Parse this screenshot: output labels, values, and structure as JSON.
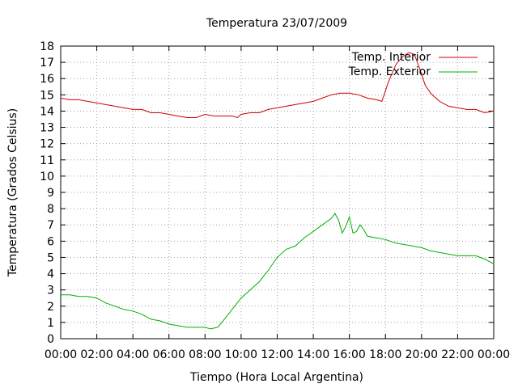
{
  "chart_data": {
    "type": "line",
    "title": "Temperatura 23/07/2009",
    "xlabel": "Tiempo (Hora Local Argentina)",
    "ylabel": "Temperatura (Grados Celsius)",
    "xlim": [
      0,
      24
    ],
    "ylim": [
      0,
      18
    ],
    "grid": true,
    "legend_position": "top-right",
    "x_tick_labels": [
      "00:00",
      "02:00",
      "04:00",
      "06:00",
      "08:00",
      "10:00",
      "12:00",
      "14:00",
      "16:00",
      "18:00",
      "20:00",
      "22:00",
      "00:00"
    ],
    "y_tick_labels": [
      "0",
      "1",
      "2",
      "3",
      "4",
      "5",
      "6",
      "7",
      "8",
      "9",
      "10",
      "11",
      "12",
      "13",
      "14",
      "15",
      "16",
      "17",
      "18"
    ],
    "series": [
      {
        "name": "Temp. Interior",
        "color": "#cc0000",
        "x": [
          0,
          0.5,
          1,
          1.5,
          2,
          2.5,
          3,
          3.5,
          4,
          4.5,
          5,
          5.5,
          6,
          6.5,
          7,
          7.5,
          8,
          8.5,
          9,
          9.5,
          9.8,
          10,
          10.5,
          11,
          11.5,
          12,
          12.5,
          13,
          13.5,
          14,
          14.5,
          15,
          15.5,
          16,
          16.5,
          17,
          17.5,
          17.8,
          18.2,
          18.6,
          19,
          19.3,
          19.6,
          19.9,
          20.2,
          20.5,
          21,
          21.5,
          22,
          22.5,
          23,
          23.5,
          24
        ],
        "values": [
          14.8,
          14.7,
          14.7,
          14.6,
          14.5,
          14.4,
          14.3,
          14.2,
          14.1,
          14.1,
          13.9,
          13.9,
          13.8,
          13.7,
          13.6,
          13.6,
          13.8,
          13.7,
          13.7,
          13.7,
          13.6,
          13.8,
          13.9,
          13.9,
          14.1,
          14.2,
          14.3,
          14.4,
          14.5,
          14.6,
          14.8,
          15.0,
          15.1,
          15.1,
          15.0,
          14.8,
          14.7,
          14.6,
          15.9,
          16.9,
          17.4,
          17.6,
          17.5,
          16.6,
          15.6,
          15.1,
          14.6,
          14.3,
          14.2,
          14.1,
          14.1,
          13.9,
          14.0
        ]
      },
      {
        "name": "Temp. Exterior",
        "color": "#00b000",
        "x": [
          0,
          0.5,
          1,
          1.5,
          2,
          2.5,
          3,
          3.5,
          4,
          4.5,
          5,
          5.5,
          6,
          6.5,
          7,
          7.5,
          8,
          8.3,
          8.7,
          9,
          9.5,
          10,
          10.5,
          11,
          11.5,
          12,
          12.5,
          13,
          13.5,
          14,
          14.5,
          15,
          15.2,
          15.4,
          15.6,
          15.8,
          16,
          16.2,
          16.4,
          16.6,
          16.8,
          17,
          17.5,
          18,
          18.5,
          19,
          19.5,
          20,
          20.5,
          21,
          21.5,
          22,
          22.5,
          23,
          23.5,
          24
        ],
        "values": [
          2.7,
          2.7,
          2.6,
          2.6,
          2.5,
          2.2,
          2.0,
          1.8,
          1.7,
          1.5,
          1.2,
          1.1,
          0.9,
          0.8,
          0.7,
          0.7,
          0.7,
          0.6,
          0.7,
          1.1,
          1.8,
          2.5,
          3.0,
          3.5,
          4.2,
          5.0,
          5.5,
          5.7,
          6.2,
          6.6,
          7.0,
          7.4,
          7.7,
          7.3,
          6.5,
          6.9,
          7.5,
          6.5,
          6.6,
          7.0,
          6.7,
          6.3,
          6.2,
          6.1,
          5.9,
          5.8,
          5.7,
          5.6,
          5.4,
          5.3,
          5.2,
          5.1,
          5.1,
          5.1,
          4.9,
          4.6
        ]
      }
    ]
  }
}
